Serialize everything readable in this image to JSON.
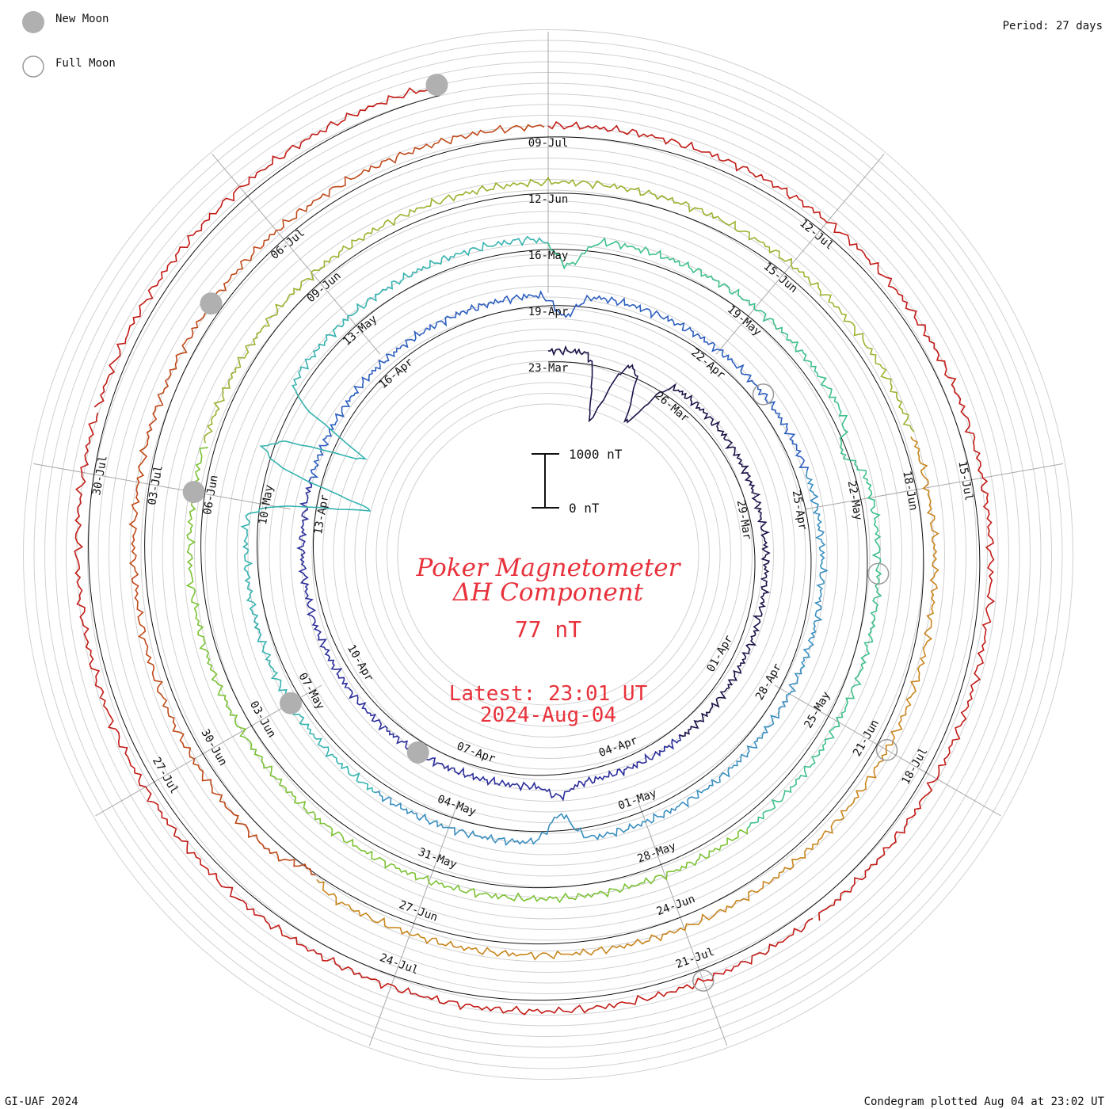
{
  "chart_data": {
    "type": "line",
    "subtype": "spiral-condegram",
    "title_line1": "Poker Magnetometer",
    "title_line2": "ΔH Component",
    "current_value": "77 nT",
    "latest_label": "Latest: 23:01 UT",
    "latest_date": "2024-Aug-04",
    "period_label": "Period: 27 days",
    "scale_bar": {
      "top_label": "1000 nT",
      "bottom_label": "0 nT"
    },
    "legend": {
      "new_moon": "New Moon",
      "full_moon": "Full Moon",
      "placement": "top-left"
    },
    "footer_left": "GI-UAF 2024",
    "footer_right": "Condegram plotted Aug 04 at 23:02 UT",
    "grid": true,
    "period_days": 27,
    "ring_colors": [
      "#1a1448",
      "#2c2e9a",
      "#2d5fbf",
      "#3a8fc0",
      "#36b3b0",
      "#3fc08c",
      "#7cc235",
      "#9cb230",
      "#c9861d",
      "#c04a1a",
      "#c21b16"
    ],
    "date_labels": [
      {
        "text": "23-Mar"
      },
      {
        "text": "26-Mar"
      },
      {
        "text": "29-Mar"
      },
      {
        "text": "01-Apr"
      },
      {
        "text": "04-Apr"
      },
      {
        "text": "07-Apr"
      },
      {
        "text": "10-Apr"
      },
      {
        "text": "13-Apr"
      },
      {
        "text": "16-Apr"
      },
      {
        "text": "19-Apr"
      },
      {
        "text": "22-Apr"
      },
      {
        "text": "25-Apr"
      },
      {
        "text": "28-Apr"
      },
      {
        "text": "01-May"
      },
      {
        "text": "04-May"
      },
      {
        "text": "07-May"
      },
      {
        "text": "10-May"
      },
      {
        "text": "13-May"
      },
      {
        "text": "16-May"
      },
      {
        "text": "19-May"
      },
      {
        "text": "22-May"
      },
      {
        "text": "25-May"
      },
      {
        "text": "28-May"
      },
      {
        "text": "31-May"
      },
      {
        "text": "03-Jun"
      },
      {
        "text": "06-Jun"
      },
      {
        "text": "09-Jun"
      },
      {
        "text": "12-Jun"
      },
      {
        "text": "15-Jun"
      },
      {
        "text": "18-Jun"
      },
      {
        "text": "21-Jun"
      },
      {
        "text": "24-Jun"
      },
      {
        "text": "27-Jun"
      },
      {
        "text": "30-Jun"
      },
      {
        "text": "03-Jul"
      },
      {
        "text": "06-Jul"
      },
      {
        "text": "09-Jul"
      },
      {
        "text": "12-Jul"
      },
      {
        "text": "15-Jul"
      },
      {
        "text": "18-Jul"
      },
      {
        "text": "21-Jul"
      },
      {
        "text": "24-Jul"
      },
      {
        "text": "27-Jul"
      },
      {
        "text": "30-Jul"
      }
    ],
    "moon_phases": [
      {
        "type": "new",
        "date": "2024-04-08"
      },
      {
        "type": "full",
        "date": "2024-04-23"
      },
      {
        "type": "new",
        "date": "2024-05-07"
      },
      {
        "type": "full",
        "date": "2024-05-23"
      },
      {
        "type": "new",
        "date": "2024-06-06"
      },
      {
        "type": "full",
        "date": "2024-06-21"
      },
      {
        "type": "new",
        "date": "2024-07-05"
      },
      {
        "type": "full",
        "date": "2024-07-21"
      },
      {
        "type": "new",
        "date": "2024-08-04"
      }
    ],
    "activity": [
      {
        "date": "2024-03-24",
        "dH_nT": -1200
      },
      {
        "date": "2024-03-25",
        "dH_nT": -1000
      },
      {
        "date": "2024-04-05",
        "dH_nT": 200
      },
      {
        "date": "2024-04-19",
        "dH_nT": -400
      },
      {
        "date": "2024-05-02",
        "dH_nT": -500
      },
      {
        "date": "2024-05-10",
        "dH_nT": -2200
      },
      {
        "date": "2024-05-11",
        "dH_nT": -1800
      },
      {
        "date": "2024-05-16",
        "dH_nT": -500
      },
      {
        "date": "2024-05-21",
        "dH_nT": -300
      },
      {
        "date": "2024-06-28",
        "dH_nT": -200
      },
      {
        "date": "2024-08-04",
        "dH_nT": -600
      }
    ]
  }
}
